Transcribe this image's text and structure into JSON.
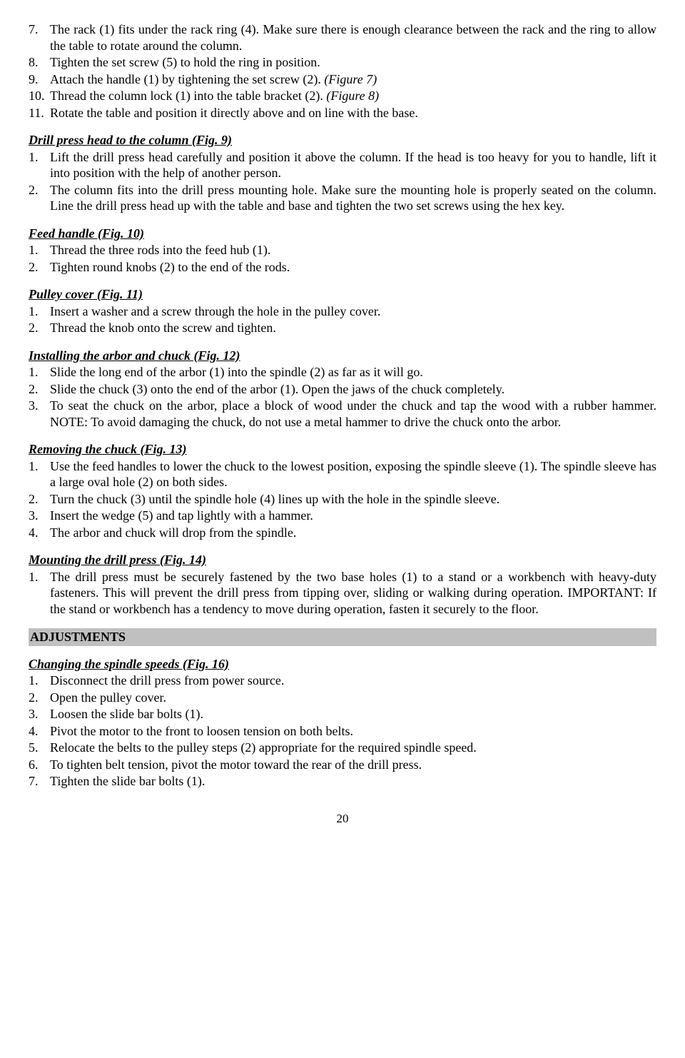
{
  "top_list": {
    "start": 7,
    "items": [
      "The rack (1) fits under the rack ring (4). Make sure there is enough clearance between the rack and the ring to allow the table to rotate around the column.",
      "Tighten the set screw (5) to hold the ring in position.",
      "Attach the handle (1) by tightening the set screw (2). <span class=\"italic\">(Figure 7)</span>",
      "Thread the column lock (1) into the table bracket (2). <span class=\"italic\">(Figure 8)</span>",
      "Rotate the table and position it directly above and on line with the base."
    ]
  },
  "sections": [
    {
      "title": "Drill press head to the column (Fig. 9)",
      "items": [
        "Lift the drill press head carefully and position it above the column. If the head is too heavy for you to handle, lift it into position with the help of another person.",
        "The column fits into the drill press mounting hole. Make sure the mounting hole is properly seated on the column. Line the drill press head up with the table and base and tighten the two set screws using the hex key."
      ]
    },
    {
      "title": "Feed handle (Fig. 10)",
      "items": [
        "Thread the three rods into the feed hub (1).",
        "Tighten round knobs (2) to the end of the rods."
      ]
    },
    {
      "title": "Pulley cover (Fig. 11)",
      "items": [
        "Insert a washer and a screw through the hole in the pulley cover.",
        "Thread the knob onto the screw and tighten."
      ]
    },
    {
      "title": "Installing the arbor and chuck (Fig. 12)",
      "items": [
        "Slide the long end of the arbor (1) into the spindle (2) as far as it will go.",
        "Slide the chuck (3) onto the end of the arbor (1). Open the jaws of the chuck completely.",
        "To seat the chuck on the arbor, place a block of wood under the chuck and tap the wood with a rubber hammer. NOTE: To avoid damaging the chuck, do not use a metal hammer to drive the chuck onto the arbor."
      ]
    },
    {
      "title": "Removing the chuck (Fig. 13)",
      "items": [
        "Use the feed handles to lower the chuck to the lowest position, exposing the spindle sleeve (1). The spindle sleeve has a large oval hole (2) on both sides.",
        "Turn the chuck (3) until the spindle hole (4) lines up with the hole in the spindle sleeve.",
        "Insert the wedge (5) and tap lightly with a hammer.",
        "The arbor and chuck will drop from the spindle."
      ]
    },
    {
      "title": "Mounting the drill press (Fig. 14)",
      "items": [
        "The drill press must be securely fastened by the two base holes (1) to a stand or a workbench with heavy-duty fasteners. This will prevent the drill press from tipping over, sliding or walking during operation. IMPORTANT: If the stand or workbench has a tendency to move during operation, fasten it securely to the floor."
      ]
    }
  ],
  "heading": "ADJUSTMENTS",
  "after_sections": [
    {
      "title": "Changing the spindle speeds (Fig. 16)",
      "items": [
        "Disconnect the drill press from power source.",
        "Open the pulley cover.",
        "Loosen the slide bar bolts (1).",
        "Pivot the motor to the front to loosen tension on both belts.",
        "Relocate the belts to the pulley steps (2) appropriate for the required spindle speed.",
        "To tighten belt tension, pivot the motor toward the rear of the drill press.",
        "Tighten the slide bar bolts (1)."
      ]
    }
  ],
  "page_number": "20"
}
